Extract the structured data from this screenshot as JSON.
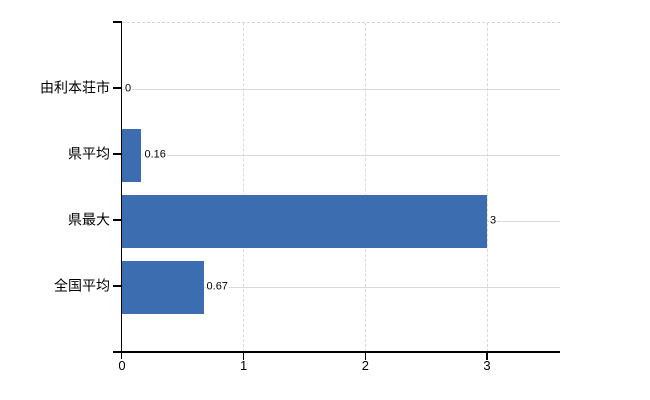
{
  "chart_data": {
    "type": "bar",
    "orientation": "horizontal",
    "title": "",
    "xlabel": "",
    "ylabel": "",
    "categories": [
      "由利本荘市",
      "県平均",
      "県最大",
      "全国平均"
    ],
    "values": [
      0,
      0.16,
      3,
      0.67
    ],
    "value_labels": [
      "0",
      "0.16",
      "3",
      "0.67"
    ],
    "x_tick_labels": [
      "0",
      "1",
      "2",
      "3"
    ],
    "x_tick_values": [
      0,
      1,
      2,
      3
    ],
    "xlim": [
      0,
      3.6
    ],
    "grid": "horizontal-solid, vertical-dashed",
    "legend": "none"
  },
  "colors": {
    "background": "#ffffff",
    "bar": "#3c6db1",
    "axis": "#000000",
    "text": "#000000",
    "h_gridline": "#d6dbd6",
    "v_gridline": "#dcd7d9",
    "top_border": "#d9d5d3"
  }
}
